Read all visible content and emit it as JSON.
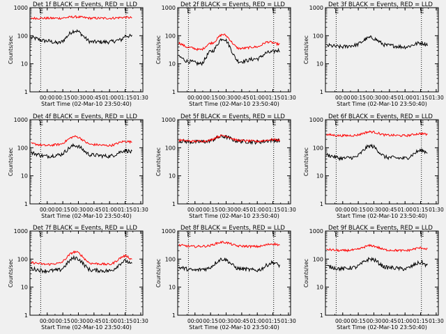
{
  "figure": {
    "layout": "3x3 grid",
    "background": "#f0f0f0",
    "colors": {
      "events": "#000000",
      "lld": "#ff0000",
      "axes": "#000000"
    }
  },
  "chart_data": [
    {
      "type": "line",
      "title": "Det 1f BLACK = Events, RED = LLD",
      "xlabel": "Start Time (02-Mar-10 23:50:40)",
      "ylabel": "Counts/sec",
      "yscale": "log",
      "ylim": [
        1,
        1000
      ],
      "xlim_minutes": [
        0,
        100
      ],
      "x_tick_labels": [
        "00:00",
        "00:15",
        "00:30",
        "00:45",
        "01:00",
        "01:15",
        "01:30"
      ],
      "y_tick_labels": [
        "1",
        "10",
        "100",
        "1000"
      ],
      "markers": [
        "E",
        "E"
      ],
      "vlines_minutes": [
        9.5,
        85
      ],
      "series": [
        {
          "key": "events",
          "x_minutes": [
            0,
            15,
            25,
            40,
            55,
            70,
            80,
            85,
            90
          ],
          "y": [
            85,
            65,
            55,
            150,
            60,
            60,
            70,
            100,
            95
          ]
        },
        {
          "key": "lld",
          "x_minutes": [
            0,
            15,
            25,
            40,
            55,
            70,
            85,
            90
          ],
          "y": [
            420,
            420,
            420,
            470,
            420,
            420,
            450,
            440
          ]
        }
      ]
    },
    {
      "type": "line",
      "title": "Det 2f BLACK = Events, RED = LLD",
      "xlabel": "Start Time (02-Mar-10 23:50:40)",
      "ylabel": "Counts/sec",
      "yscale": "log",
      "ylim": [
        1,
        1000
      ],
      "xlim_minutes": [
        0,
        100
      ],
      "x_tick_labels": [
        "00:00",
        "00:15",
        "00:30",
        "00:45",
        "01:00",
        "01:15",
        "01:30"
      ],
      "y_tick_labels": [
        "1",
        "10",
        "100",
        "1000"
      ],
      "markers": [
        "E",
        "E"
      ],
      "vlines_minutes": [
        9.5,
        85
      ],
      "series": [
        {
          "key": "events",
          "x_minutes": [
            0,
            10,
            20,
            30,
            40,
            55,
            70,
            80,
            90
          ],
          "y": [
            18,
            12,
            10,
            28,
            80,
            12,
            15,
            25,
            30
          ]
        },
        {
          "key": "lld",
          "x_minutes": [
            0,
            10,
            20,
            30,
            40,
            55,
            70,
            80,
            90
          ],
          "y": [
            55,
            38,
            32,
            55,
            110,
            35,
            40,
            60,
            50
          ]
        }
      ]
    },
    {
      "type": "line",
      "title": "Det 3f BLACK = Events, RED = LLD",
      "xlabel": "Start Time (02-Mar-10 23:50:40)",
      "ylabel": "Counts/sec",
      "yscale": "log",
      "ylim": [
        1,
        1000
      ],
      "xlim_minutes": [
        0,
        100
      ],
      "x_tick_labels": [
        "00:00",
        "00:15",
        "00:30",
        "00:45",
        "01:00",
        "01:15",
        "01:30"
      ],
      "y_tick_labels": [
        "1",
        "10",
        "100",
        "1000"
      ],
      "markers": [
        "E",
        "E"
      ],
      "vlines_minutes": [
        9.5,
        85
      ],
      "series": [
        {
          "key": "events",
          "x_minutes": [
            0,
            15,
            25,
            40,
            55,
            70,
            85,
            90
          ],
          "y": [
            45,
            40,
            45,
            85,
            45,
            40,
            55,
            50
          ]
        }
      ]
    },
    {
      "type": "line",
      "title": "Det 4f BLACK = Events, RED = LLD",
      "xlabel": "Start Time (02-Mar-10 23:50:40)",
      "ylabel": "Counts/sec",
      "yscale": "log",
      "ylim": [
        1,
        1000
      ],
      "xlim_minutes": [
        0,
        100
      ],
      "x_tick_labels": [
        "00:00",
        "00:15",
        "00:30",
        "00:45",
        "01:00",
        "01:15",
        "01:30"
      ],
      "y_tick_labels": [
        "1",
        "10",
        "100",
        "1000"
      ],
      "markers": [
        "E",
        "E"
      ],
      "vlines_minutes": [
        9.5,
        85
      ],
      "series": [
        {
          "key": "events",
          "x_minutes": [
            0,
            15,
            25,
            40,
            55,
            70,
            85,
            90
          ],
          "y": [
            65,
            50,
            55,
            120,
            55,
            50,
            80,
            70
          ]
        },
        {
          "key": "lld",
          "x_minutes": [
            0,
            15,
            25,
            40,
            55,
            70,
            85,
            90
          ],
          "y": [
            140,
            120,
            130,
            250,
            130,
            120,
            170,
            160
          ]
        }
      ]
    },
    {
      "type": "line",
      "title": "Det 5f BLACK = Events, RED = LLD",
      "xlabel": "Start Time (02-Mar-10 23:50:40)",
      "ylabel": "Counts/sec",
      "yscale": "log",
      "ylim": [
        1,
        1000
      ],
      "xlim_minutes": [
        0,
        100
      ],
      "x_tick_labels": [
        "00:00",
        "00:15",
        "00:30",
        "00:45",
        "01:00",
        "01:15",
        "01:30"
      ],
      "y_tick_labels": [
        "1",
        "10",
        "100",
        "1000"
      ],
      "markers": [
        "E",
        "E"
      ],
      "vlines_minutes": [
        9.5,
        85
      ],
      "series": [
        {
          "key": "events",
          "x_minutes": [
            0,
            15,
            25,
            40,
            55,
            70,
            85,
            90
          ],
          "y": [
            175,
            160,
            165,
            250,
            170,
            160,
            185,
            175
          ]
        },
        {
          "key": "lld",
          "x_minutes": [
            0,
            15,
            25,
            40,
            55,
            70,
            85,
            90
          ],
          "y": [
            185,
            170,
            175,
            270,
            180,
            170,
            195,
            185
          ]
        }
      ]
    },
    {
      "type": "line",
      "title": "Det 6f BLACK = Events, RED = LLD",
      "xlabel": "Start Time (02-Mar-10 23:50:40)",
      "ylabel": "Counts/sec",
      "yscale": "log",
      "ylim": [
        1,
        1000
      ],
      "xlim_minutes": [
        0,
        100
      ],
      "x_tick_labels": [
        "00:00",
        "00:15",
        "00:30",
        "00:45",
        "01:00",
        "01:15",
        "01:30"
      ],
      "y_tick_labels": [
        "1",
        "10",
        "100",
        "1000"
      ],
      "markers": [
        "E",
        "E"
      ],
      "vlines_minutes": [
        9.5,
        85
      ],
      "series": [
        {
          "key": "events",
          "x_minutes": [
            0,
            15,
            25,
            40,
            55,
            70,
            85,
            90
          ],
          "y": [
            55,
            42,
            45,
            115,
            45,
            42,
            80,
            70
          ]
        },
        {
          "key": "lld",
          "x_minutes": [
            0,
            15,
            25,
            40,
            55,
            70,
            85,
            90
          ],
          "y": [
            290,
            270,
            275,
            370,
            280,
            270,
            320,
            300
          ]
        }
      ]
    },
    {
      "type": "line",
      "title": "Det 7f BLACK = Events, RED = LLD",
      "xlabel": "Start Time (02-Mar-10 23:50:40)",
      "ylabel": "Counts/sec",
      "yscale": "log",
      "ylim": [
        1,
        1000
      ],
      "xlim_minutes": [
        0,
        100
      ],
      "x_tick_labels": [
        "00:00",
        "00:15",
        "00:30",
        "00:45",
        "01:00",
        "01:15",
        "01:30"
      ],
      "y_tick_labels": [
        "1",
        "10",
        "100",
        "1000"
      ],
      "markers": [
        "E",
        "E"
      ],
      "vlines_minutes": [
        9.5,
        85
      ],
      "series": [
        {
          "key": "events",
          "x_minutes": [
            0,
            15,
            25,
            40,
            55,
            70,
            85,
            90
          ],
          "y": [
            45,
            38,
            40,
            110,
            40,
            38,
            85,
            65
          ]
        },
        {
          "key": "lld",
          "x_minutes": [
            0,
            15,
            25,
            40,
            55,
            70,
            85,
            90
          ],
          "y": [
            75,
            65,
            70,
            180,
            70,
            65,
            130,
            100
          ]
        }
      ]
    },
    {
      "type": "line",
      "title": "Det 8f BLACK = Events, RED = LLD",
      "xlabel": "Start Time (02-Mar-10 23:50:40)",
      "ylabel": "Counts/sec",
      "yscale": "log",
      "ylim": [
        1,
        1000
      ],
      "xlim_minutes": [
        0,
        100
      ],
      "x_tick_labels": [
        "00:00",
        "00:15",
        "00:30",
        "00:45",
        "01:00",
        "01:15",
        "01:30"
      ],
      "y_tick_labels": [
        "1",
        "10",
        "100",
        "1000"
      ],
      "markers": [
        "E",
        "E"
      ],
      "vlines_minutes": [
        9.5,
        85
      ],
      "series": [
        {
          "key": "events",
          "x_minutes": [
            0,
            15,
            25,
            40,
            55,
            70,
            85,
            90
          ],
          "y": [
            50,
            40,
            45,
            100,
            45,
            40,
            75,
            60
          ]
        },
        {
          "key": "lld",
          "x_minutes": [
            0,
            15,
            25,
            40,
            55,
            70,
            85,
            90
          ],
          "y": [
            310,
            280,
            290,
            400,
            290,
            280,
            350,
            320
          ]
        }
      ]
    },
    {
      "type": "line",
      "title": "Det 9f BLACK = Events, RED = LLD",
      "xlabel": "Start Time (02-Mar-10 23:50:40)",
      "ylabel": "Counts/sec",
      "yscale": "log",
      "ylim": [
        1,
        1000
      ],
      "xlim_minutes": [
        0,
        100
      ],
      "x_tick_labels": [
        "00:00",
        "00:15",
        "00:30",
        "00:45",
        "01:00",
        "01:15",
        "01:30"
      ],
      "y_tick_labels": [
        "1",
        "10",
        "100",
        "1000"
      ],
      "markers": [
        "E",
        "E"
      ],
      "vlines_minutes": [
        9.5,
        85
      ],
      "series": [
        {
          "key": "events",
          "x_minutes": [
            0,
            15,
            25,
            40,
            55,
            70,
            85,
            90
          ],
          "y": [
            55,
            45,
            50,
            100,
            50,
            45,
            75,
            60
          ]
        },
        {
          "key": "lld",
          "x_minutes": [
            0,
            15,
            25,
            40,
            55,
            70,
            85,
            90
          ],
          "y": [
            220,
            200,
            210,
            300,
            210,
            200,
            250,
            230
          ]
        }
      ]
    }
  ]
}
